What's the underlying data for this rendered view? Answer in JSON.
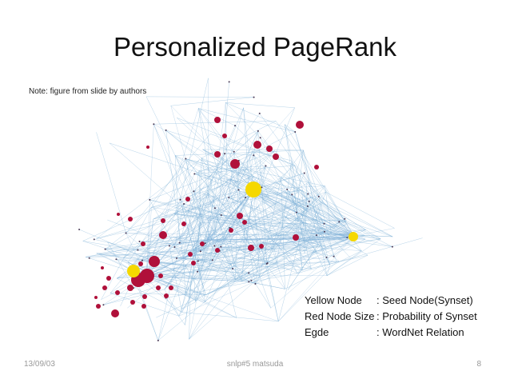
{
  "slide": {
    "title": "Personalized PageRank",
    "note": "Note: figure from slide by authors",
    "legend": [
      {
        "key": "Yellow Node",
        "value": ": Seed Node(Synset)"
      },
      {
        "key": "Red Node Size",
        "value": ": Probability of Synset"
      },
      {
        "key": "Egde",
        "value": ": WordNet Relation"
      }
    ],
    "footer": {
      "date": "13/09/03",
      "author": "snlp#5 matsuda",
      "page": "8"
    }
  },
  "colors": {
    "edge": "#7aaed6",
    "seed_node": "#f5d800",
    "probability_node": "#b0103a",
    "small_node": "#4a3a55"
  }
}
